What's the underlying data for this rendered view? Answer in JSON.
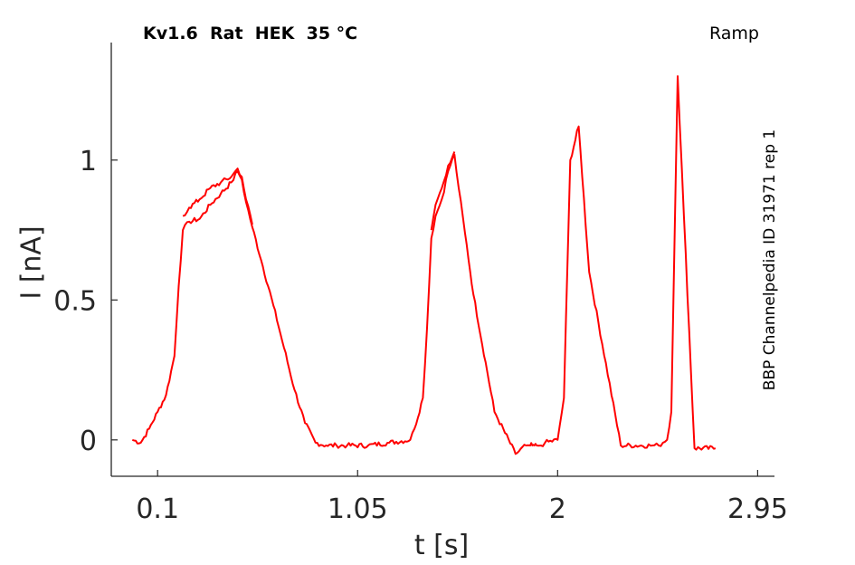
{
  "chart_data": {
    "type": "line",
    "title": "Kv1.6  Rat  HEK  35 °C",
    "annotation": "Ramp",
    "side_label": "BBP Channelpedia ID 31971 rep 1",
    "xlabel": "t [s]",
    "ylabel": "I [nA]",
    "xlim": [
      -0.12,
      3.03
    ],
    "ylim": [
      -0.13,
      1.42
    ],
    "xticks": [
      0.1,
      1.05,
      2,
      2.95
    ],
    "xtick_labels": [
      "0.1",
      "1.05",
      "2",
      "2.95"
    ],
    "yticks": [
      0,
      0.5,
      1
    ],
    "ytick_labels": [
      "0",
      "0.5",
      "1"
    ],
    "grid": false,
    "color": "#ff0000",
    "series": [
      {
        "x": [
          -0.02,
          0.02,
          0.06,
          0.1,
          0.14,
          0.18,
          0.2,
          0.22,
          0.25,
          0.3,
          0.35,
          0.4,
          0.45,
          0.48,
          0.5,
          0.52,
          0.55,
          0.6,
          0.65,
          0.7,
          0.75,
          0.8,
          0.85,
          0.9,
          0.95,
          1.0,
          1.1,
          1.2,
          1.3,
          1.32,
          1.36,
          1.38,
          1.4,
          1.42,
          1.45,
          1.48,
          1.51,
          1.53,
          1.56,
          1.6,
          1.7,
          1.8,
          1.85,
          1.87,
          1.88,
          1.89,
          1.9,
          1.92,
          1.94,
          2.0,
          2.03,
          2.06,
          2.1,
          2.15,
          2.3,
          2.45,
          2.48,
          2.5,
          2.52,
          2.54,
          2.57,
          2.6,
          2.65,
          2.75
        ],
        "y": [
          0.0,
          -0.01,
          0.04,
          0.1,
          0.16,
          0.3,
          0.55,
          0.75,
          0.78,
          0.79,
          0.84,
          0.88,
          0.92,
          0.96,
          0.93,
          0.85,
          0.76,
          0.62,
          0.48,
          0.33,
          0.18,
          0.06,
          -0.01,
          -0.02,
          -0.02,
          -0.02,
          -0.02,
          -0.01,
          0.0,
          0.04,
          0.15,
          0.4,
          0.72,
          0.8,
          0.86,
          0.96,
          1.02,
          0.9,
          0.74,
          0.52,
          0.1,
          -0.05,
          -0.02,
          -0.02,
          -0.02,
          -0.02,
          -0.02,
          -0.02,
          -0.01,
          0.0,
          0.15,
          1.0,
          1.12,
          0.6,
          -0.02,
          -0.02,
          -0.02,
          -0.01,
          0.0,
          0.1,
          1.3,
          0.8,
          -0.03,
          -0.03
        ]
      },
      {
        "x": [
          0.22,
          0.25,
          0.3,
          0.35,
          0.4,
          0.45,
          0.48,
          0.5,
          0.52,
          0.55
        ],
        "y": [
          0.8,
          0.83,
          0.86,
          0.9,
          0.92,
          0.94,
          0.97,
          0.94,
          0.86,
          0.77
        ]
      },
      {
        "x": [
          1.4,
          1.42,
          1.45,
          1.48,
          1.51
        ],
        "y": [
          0.75,
          0.84,
          0.9,
          0.98,
          1.03
        ]
      }
    ]
  }
}
